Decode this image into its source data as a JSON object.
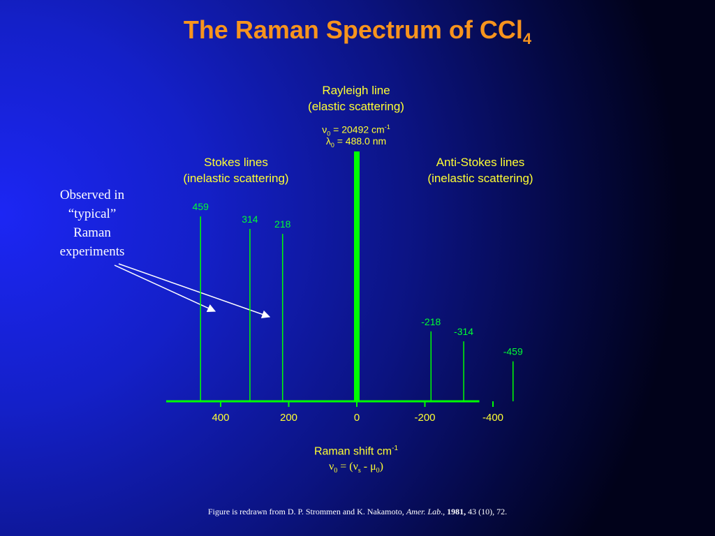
{
  "slide": {
    "title_main": "The Raman Spectrum of CCl",
    "title_sub": "4",
    "rayleigh_label": [
      "Rayleigh line",
      "(elastic scattering)"
    ],
    "rayleigh_eq1": {
      "sym": "ν",
      "sub": "0",
      "text": " = 20492 cm",
      "sup": "-1"
    },
    "rayleigh_eq2": {
      "sym": "λ",
      "sub": "0",
      "text": " = 488.0 nm"
    },
    "stokes_label": [
      "Stokes lines",
      "(inelastic scattering)"
    ],
    "antistokes_label": [
      "Anti-Stokes lines",
      "(inelastic scattering)"
    ],
    "left_note": [
      "Observed in",
      "“typical”",
      "Raman",
      "experiments"
    ],
    "xaxis_title": {
      "text": "Raman shift cm",
      "sup": "-1"
    },
    "xaxis_formula": {
      "a": "ν",
      "a_sub": "0",
      "mid": " = (",
      "b": "ν",
      "b_sub": "s",
      "sep": " - ",
      "c": "μ",
      "c_sub": "0",
      "end": ")"
    },
    "caption": {
      "pre": "Figure is redrawn from D. P. Strommen and K. Nakamoto, ",
      "journal": "Amer. Lab",
      "sep": "., ",
      "year": "1981,",
      "post": " 43 (10), 72."
    }
  },
  "chart_data": {
    "type": "bar",
    "xlabel": "Raman shift cm-1",
    "x_reversed": true,
    "xlim": [
      560,
      -360
    ],
    "x_ticks": [
      400,
      200,
      0,
      -200,
      -400
    ],
    "rayleigh": {
      "x": 0,
      "relative_intensity": 1.0
    },
    "lines": [
      {
        "x": 459,
        "label": "459",
        "relative_intensity": 0.74
      },
      {
        "x": 314,
        "label": "314",
        "relative_intensity": 0.69
      },
      {
        "x": 218,
        "label": "218",
        "relative_intensity": 0.67
      },
      {
        "x": -218,
        "label": "-218",
        "relative_intensity": 0.28
      },
      {
        "x": -314,
        "label": "-314",
        "relative_intensity": 0.24
      },
      {
        "x": -459,
        "label": "-459",
        "relative_intensity": 0.16
      }
    ],
    "colors": {
      "lines": "#00ff00",
      "axis": "#00ff00",
      "labels": "#00ff33",
      "text": "#ffff33",
      "title": "#f7941d"
    }
  }
}
